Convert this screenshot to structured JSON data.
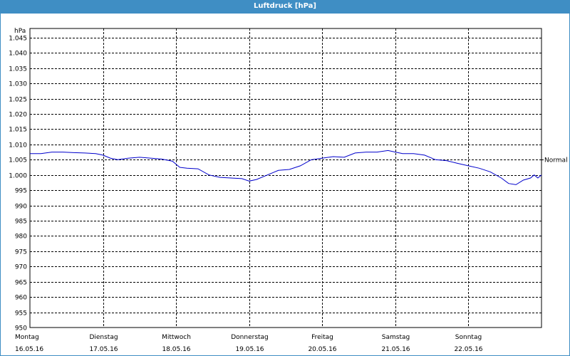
{
  "chart_data": {
    "type": "line",
    "title": "Luftdruck [hPa]",
    "ylabel": "hPa",
    "ylim": [
      950,
      1048
    ],
    "yticks": [
      950,
      955,
      960,
      965,
      970,
      975,
      980,
      985,
      990,
      995,
      1000,
      1005,
      1010,
      1015,
      1020,
      1025,
      1030,
      1035,
      1040,
      1045
    ],
    "ytick_labels": [
      "950",
      "955",
      "960",
      "965",
      "970",
      "975",
      "980",
      "985",
      "990",
      "995",
      "1.000",
      "1.005",
      "1.010",
      "1.015",
      "1.020",
      "1.025",
      "1.030",
      "1.035",
      "1.040",
      "1.045"
    ],
    "xlim": [
      0,
      7
    ],
    "xticks": [
      {
        "day": "Montag",
        "date": "16.05.16",
        "x": 0
      },
      {
        "day": "Dienstag",
        "date": "17.05.16",
        "x": 1
      },
      {
        "day": "Mittwoch",
        "date": "18.05.16",
        "x": 2
      },
      {
        "day": "Donnerstag",
        "date": "19.05.16",
        "x": 3
      },
      {
        "day": "Freitag",
        "date": "20.05.16",
        "x": 4
      },
      {
        "day": "Samstag",
        "date": "21.05.16",
        "x": 5
      },
      {
        "day": "Sonntag",
        "date": "22.05.16",
        "x": 6
      }
    ],
    "grid": true,
    "reference_line": {
      "label": "Normal",
      "value": 1005
    },
    "colors": {
      "line": "#0000cc",
      "grid": "#000000",
      "frame": "#3f8ec4"
    },
    "series": [
      {
        "x": [
          0,
          0.15,
          0.3,
          0.45,
          0.6,
          0.75,
          0.9,
          1.0,
          1.1,
          1.2,
          1.35,
          1.5,
          1.65,
          1.8,
          1.95,
          2.05,
          2.15,
          2.3,
          2.45,
          2.6,
          2.75,
          2.9,
          3.0,
          3.1,
          3.25,
          3.4,
          3.55,
          3.7,
          3.85,
          4.0,
          4.15,
          4.3,
          4.45,
          4.6,
          4.75,
          4.9,
          5.0,
          5.1,
          5.25,
          5.4,
          5.55,
          5.7,
          5.85,
          6.0,
          6.15,
          6.3,
          6.45,
          6.55,
          6.65,
          6.75,
          6.85,
          6.9,
          6.95,
          7.0
        ],
        "y": [
          1007,
          1007,
          1007.5,
          1007.5,
          1007.3,
          1007.2,
          1007,
          1006.5,
          1005.5,
          1005,
          1005.5,
          1005.8,
          1005.5,
          1005.2,
          1004.5,
          1002.5,
          1002.2,
          1002,
          1000,
          999.2,
          999,
          998.8,
          998,
          998.5,
          1000,
          1001.5,
          1001.8,
          1003,
          1005,
          1005.5,
          1006,
          1005.8,
          1007.2,
          1007.5,
          1007.5,
          1008,
          1007.5,
          1007,
          1007,
          1006.5,
          1005,
          1004.7,
          1003.8,
          1003,
          1002.2,
          1001,
          999,
          997.2,
          996.8,
          998.3,
          999,
          1000,
          999,
          1000
        ]
      }
    ]
  }
}
